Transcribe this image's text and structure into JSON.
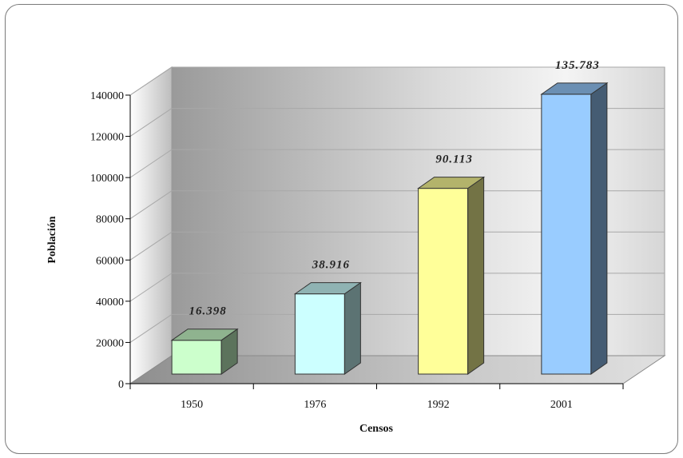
{
  "chart_data": {
    "type": "bar",
    "categories": [
      "1950",
      "1976",
      "1992",
      "2001"
    ],
    "values": [
      16398,
      38916,
      90113,
      135783
    ],
    "data_labels": [
      "16.398",
      "38.916",
      "90.113",
      "135.783"
    ],
    "colors": [
      "#ccffcc",
      "#ccffff",
      "#ffff99",
      "#99ccff"
    ],
    "title": "",
    "xlabel": "Censos",
    "ylabel": "Población",
    "ylim": [
      0,
      140000
    ],
    "yticks": [
      "0",
      "20000",
      "40000",
      "60000",
      "80000",
      "100000",
      "120000",
      "140000"
    ],
    "grid": true,
    "style": "3d"
  }
}
